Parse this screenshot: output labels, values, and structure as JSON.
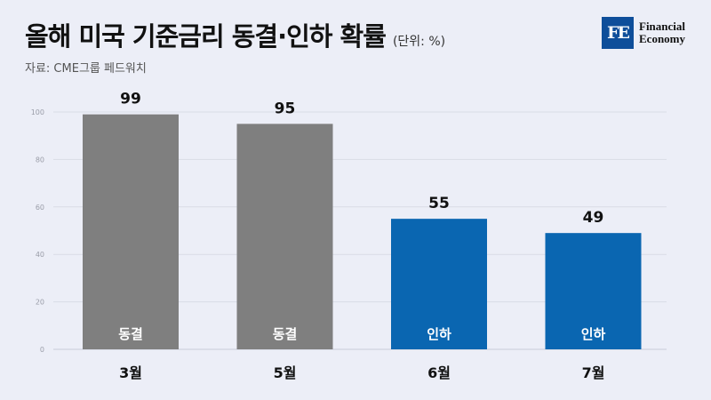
{
  "header": {
    "title": "올해 미국 기준금리 동결·인하 확률",
    "unit": "(단위: %)",
    "source": "자료: CME그룹 페드워치"
  },
  "logo": {
    "mark": "FE",
    "line1": "Financial",
    "line2": "Economy"
  },
  "colors": {
    "gray": "#7F7F7F",
    "blue": "#0A66B1",
    "background": "#ECEEF7"
  },
  "chart_data": {
    "type": "bar",
    "categories": [
      "3월",
      "5월",
      "6월",
      "7월"
    ],
    "values": [
      99,
      95,
      55,
      49
    ],
    "bar_labels": [
      "동결",
      "동결",
      "인하",
      "인하"
    ],
    "bar_colors": [
      "#7F7F7F",
      "#7F7F7F",
      "#0A66B1",
      "#0A66B1"
    ],
    "yticks": [
      0,
      20,
      40,
      60,
      80,
      100
    ],
    "ylim": [
      0,
      100
    ],
    "grid": true,
    "title": "올해 미국 기준금리 동결·인하 확률",
    "xlabel": "",
    "ylabel": ""
  }
}
